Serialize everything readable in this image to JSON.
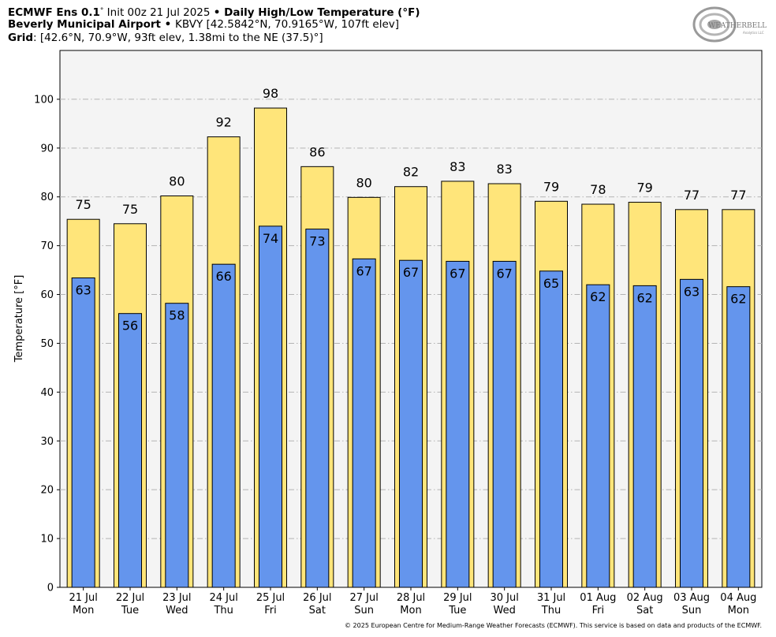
{
  "header": {
    "line1": {
      "model": "ECMWF Ens 0.1",
      "deg": "°",
      "init": " Init 00z 21 Jul 2025 ",
      "bullet": "•",
      "product": " Daily High/Low Temperature (",
      "product_unit": "°F",
      "product_close": ")"
    },
    "line2": {
      "station": "Beverly Municipal Airport",
      "bullet": " • ",
      "info": "KBVY [42.5842°N, 70.9165°W, 107ft elev]"
    },
    "line3": {
      "label": "Grid",
      "info": ": [42.6°N, 70.9°W, 93ft elev, 1.38mi to the NE (37.5)°]"
    }
  },
  "logo": {
    "text_main": "WEATHERBELL",
    "text_sub": "Analytics LLC"
  },
  "credit": "© 2025 European Centre for Medium-Range Weather Forecasts (ECMWF). This service is based on data and products of the ECMWF.",
  "chart_data": {
    "type": "bar",
    "ylabel": "Temperature [°F]",
    "ylim": [
      0,
      110
    ],
    "yticks": [
      0,
      10,
      20,
      30,
      40,
      50,
      60,
      70,
      80,
      90,
      100
    ],
    "grid": true,
    "categories": [
      "21 Jul\nMon",
      "22 Jul\nTue",
      "23 Jul\nWed",
      "24 Jul\nThu",
      "25 Jul\nFri",
      "26 Jul\nSat",
      "27 Jul\nSun",
      "28 Jul\nMon",
      "29 Jul\nTue",
      "30 Jul\nWed",
      "31 Jul\nThu",
      "01 Aug\nFri",
      "02 Aug\nSat",
      "03 Aug\nSun",
      "04 Aug\nMon"
    ],
    "series": [
      {
        "values": [
          75.4,
          74.5,
          80.2,
          92.3,
          98.2,
          86.2,
          79.9,
          82.1,
          83.2,
          82.7,
          79.1,
          78.5,
          78.9,
          77.4,
          77.4
        ],
        "labels": [
          "75",
          "75",
          "80",
          "92",
          "98",
          "86",
          "80",
          "82",
          "83",
          "83",
          "79",
          "78",
          "79",
          "77",
          "77"
        ],
        "color": "#ffe57a"
      },
      {
        "values": [
          63.4,
          56.1,
          58.2,
          66.2,
          74.0,
          73.4,
          67.3,
          67.0,
          66.8,
          66.8,
          64.8,
          62.0,
          61.8,
          63.1,
          61.6
        ],
        "labels": [
          "63",
          "56",
          "58",
          "66",
          "74",
          "73",
          "67",
          "67",
          "67",
          "67",
          "65",
          "62",
          "62",
          "63",
          "62"
        ],
        "color": "#6495ed"
      }
    ],
    "colors": {
      "plot_background": "#f4f4f4",
      "grid": "#b4b4b4"
    }
  }
}
